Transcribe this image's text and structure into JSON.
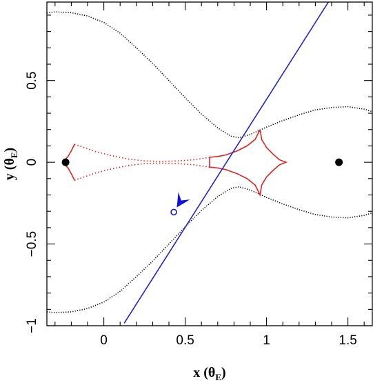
{
  "chart_data": {
    "type": "scatter",
    "title": "",
    "xlabel": {
      "main": "x (θ",
      "sub": "E",
      "close": ")"
    },
    "ylabel": {
      "main": "y (θ",
      "sub": "E",
      "close": ")"
    },
    "xlim": [
      -0.35,
      1.65
    ],
    "ylim": [
      -1.0,
      0.98
    ],
    "x_ticks": [
      {
        "value": 0,
        "label": "0"
      },
      {
        "value": 0.5,
        "label": "0.5"
      },
      {
        "value": 1,
        "label": "1"
      },
      {
        "value": 1.5,
        "label": "1.5"
      }
    ],
    "y_ticks": [
      {
        "value": -1,
        "label": "−1"
      },
      {
        "value": -0.5,
        "label": "−0.5"
      },
      {
        "value": 0,
        "label": "0"
      },
      {
        "value": 0.5,
        "label": "0.5"
      }
    ],
    "lens_positions": [
      {
        "x": -0.235,
        "y": 0
      },
      {
        "x": 1.445,
        "y": 0
      }
    ],
    "critical_curve_upper": [
      [
        -0.35,
        0.915
      ],
      [
        -0.3,
        0.92
      ],
      [
        -0.2,
        0.915
      ],
      [
        -0.1,
        0.895
      ],
      [
        0.0,
        0.855
      ],
      [
        0.1,
        0.79
      ],
      [
        0.2,
        0.7
      ],
      [
        0.3,
        0.605
      ],
      [
        0.4,
        0.5
      ],
      [
        0.5,
        0.395
      ],
      [
        0.6,
        0.295
      ],
      [
        0.7,
        0.21
      ],
      [
        0.78,
        0.16
      ],
      [
        0.83,
        0.15
      ],
      [
        0.9,
        0.17
      ],
      [
        1.0,
        0.215
      ],
      [
        1.1,
        0.255
      ],
      [
        1.2,
        0.29
      ],
      [
        1.3,
        0.32
      ],
      [
        1.4,
        0.335
      ],
      [
        1.5,
        0.34
      ],
      [
        1.6,
        0.325
      ],
      [
        1.65,
        0.31
      ]
    ],
    "critical_curve_lower": [
      [
        -0.35,
        -0.915
      ],
      [
        -0.3,
        -0.92
      ],
      [
        -0.2,
        -0.915
      ],
      [
        -0.1,
        -0.895
      ],
      [
        0.0,
        -0.855
      ],
      [
        0.1,
        -0.79
      ],
      [
        0.2,
        -0.7
      ],
      [
        0.3,
        -0.605
      ],
      [
        0.4,
        -0.5
      ],
      [
        0.5,
        -0.395
      ],
      [
        0.6,
        -0.295
      ],
      [
        0.7,
        -0.21
      ],
      [
        0.78,
        -0.16
      ],
      [
        0.83,
        -0.15
      ],
      [
        0.9,
        -0.17
      ],
      [
        1.0,
        -0.215
      ],
      [
        1.1,
        -0.255
      ],
      [
        1.2,
        -0.29
      ],
      [
        1.3,
        -0.32
      ],
      [
        1.4,
        -0.335
      ],
      [
        1.5,
        -0.34
      ],
      [
        1.6,
        -0.325
      ],
      [
        1.65,
        -0.31
      ]
    ],
    "caustic_main": [
      [
        0.96,
        0.2
      ],
      [
        0.97,
        0.14
      ],
      [
        1.0,
        0.09
      ],
      [
        1.04,
        0.05
      ],
      [
        1.08,
        0.015
      ],
      [
        1.12,
        0.0
      ],
      [
        1.08,
        -0.015
      ],
      [
        1.04,
        -0.05
      ],
      [
        1.0,
        -0.09
      ],
      [
        0.97,
        -0.14
      ],
      [
        0.96,
        -0.2
      ],
      [
        0.93,
        -0.14
      ],
      [
        0.88,
        -0.1
      ],
      [
        0.82,
        -0.07
      ],
      [
        0.75,
        -0.045
      ],
      [
        0.7,
        -0.035
      ],
      [
        0.65,
        -0.03
      ],
      [
        0.65,
        0.03
      ],
      [
        0.7,
        0.035
      ],
      [
        0.75,
        0.045
      ],
      [
        0.82,
        0.07
      ],
      [
        0.88,
        0.1
      ],
      [
        0.93,
        0.14
      ],
      [
        0.96,
        0.2
      ]
    ],
    "caustic_bridge_upper": [
      [
        0.65,
        0.03
      ],
      [
        0.55,
        0.015
      ],
      [
        0.45,
        0.008
      ],
      [
        0.35,
        0.005
      ],
      [
        0.25,
        0.008
      ],
      [
        0.15,
        0.02
      ],
      [
        0.05,
        0.04
      ],
      [
        -0.05,
        0.065
      ],
      [
        -0.12,
        0.09
      ],
      [
        -0.18,
        0.11
      ]
    ],
    "caustic_bridge_lower": [
      [
        0.65,
        -0.03
      ],
      [
        0.55,
        -0.015
      ],
      [
        0.45,
        -0.008
      ],
      [
        0.35,
        -0.005
      ],
      [
        0.25,
        -0.008
      ],
      [
        0.15,
        -0.02
      ],
      [
        0.05,
        -0.04
      ],
      [
        -0.05,
        -0.065
      ],
      [
        -0.12,
        -0.09
      ],
      [
        -0.18,
        -0.11
      ]
    ],
    "caustic_small": [
      [
        -0.18,
        0.11
      ],
      [
        -0.2,
        0.07
      ],
      [
        -0.22,
        0.035
      ],
      [
        -0.24,
        0.015
      ],
      [
        -0.25,
        0.0
      ],
      [
        -0.24,
        -0.015
      ],
      [
        -0.22,
        -0.035
      ],
      [
        -0.2,
        -0.07
      ],
      [
        -0.18,
        -0.11
      ]
    ],
    "source_trajectory": [
      [
        0.125,
        -0.985
      ],
      [
        1.38,
        0.98
      ]
    ],
    "source_position": {
      "x": 0.43,
      "y": -0.305
    },
    "colors": {
      "critical_curve": "#000000",
      "caustic": "#dd2222",
      "trajectory": "#2222cc",
      "source": "#1111dd",
      "lens": "#000000"
    }
  }
}
